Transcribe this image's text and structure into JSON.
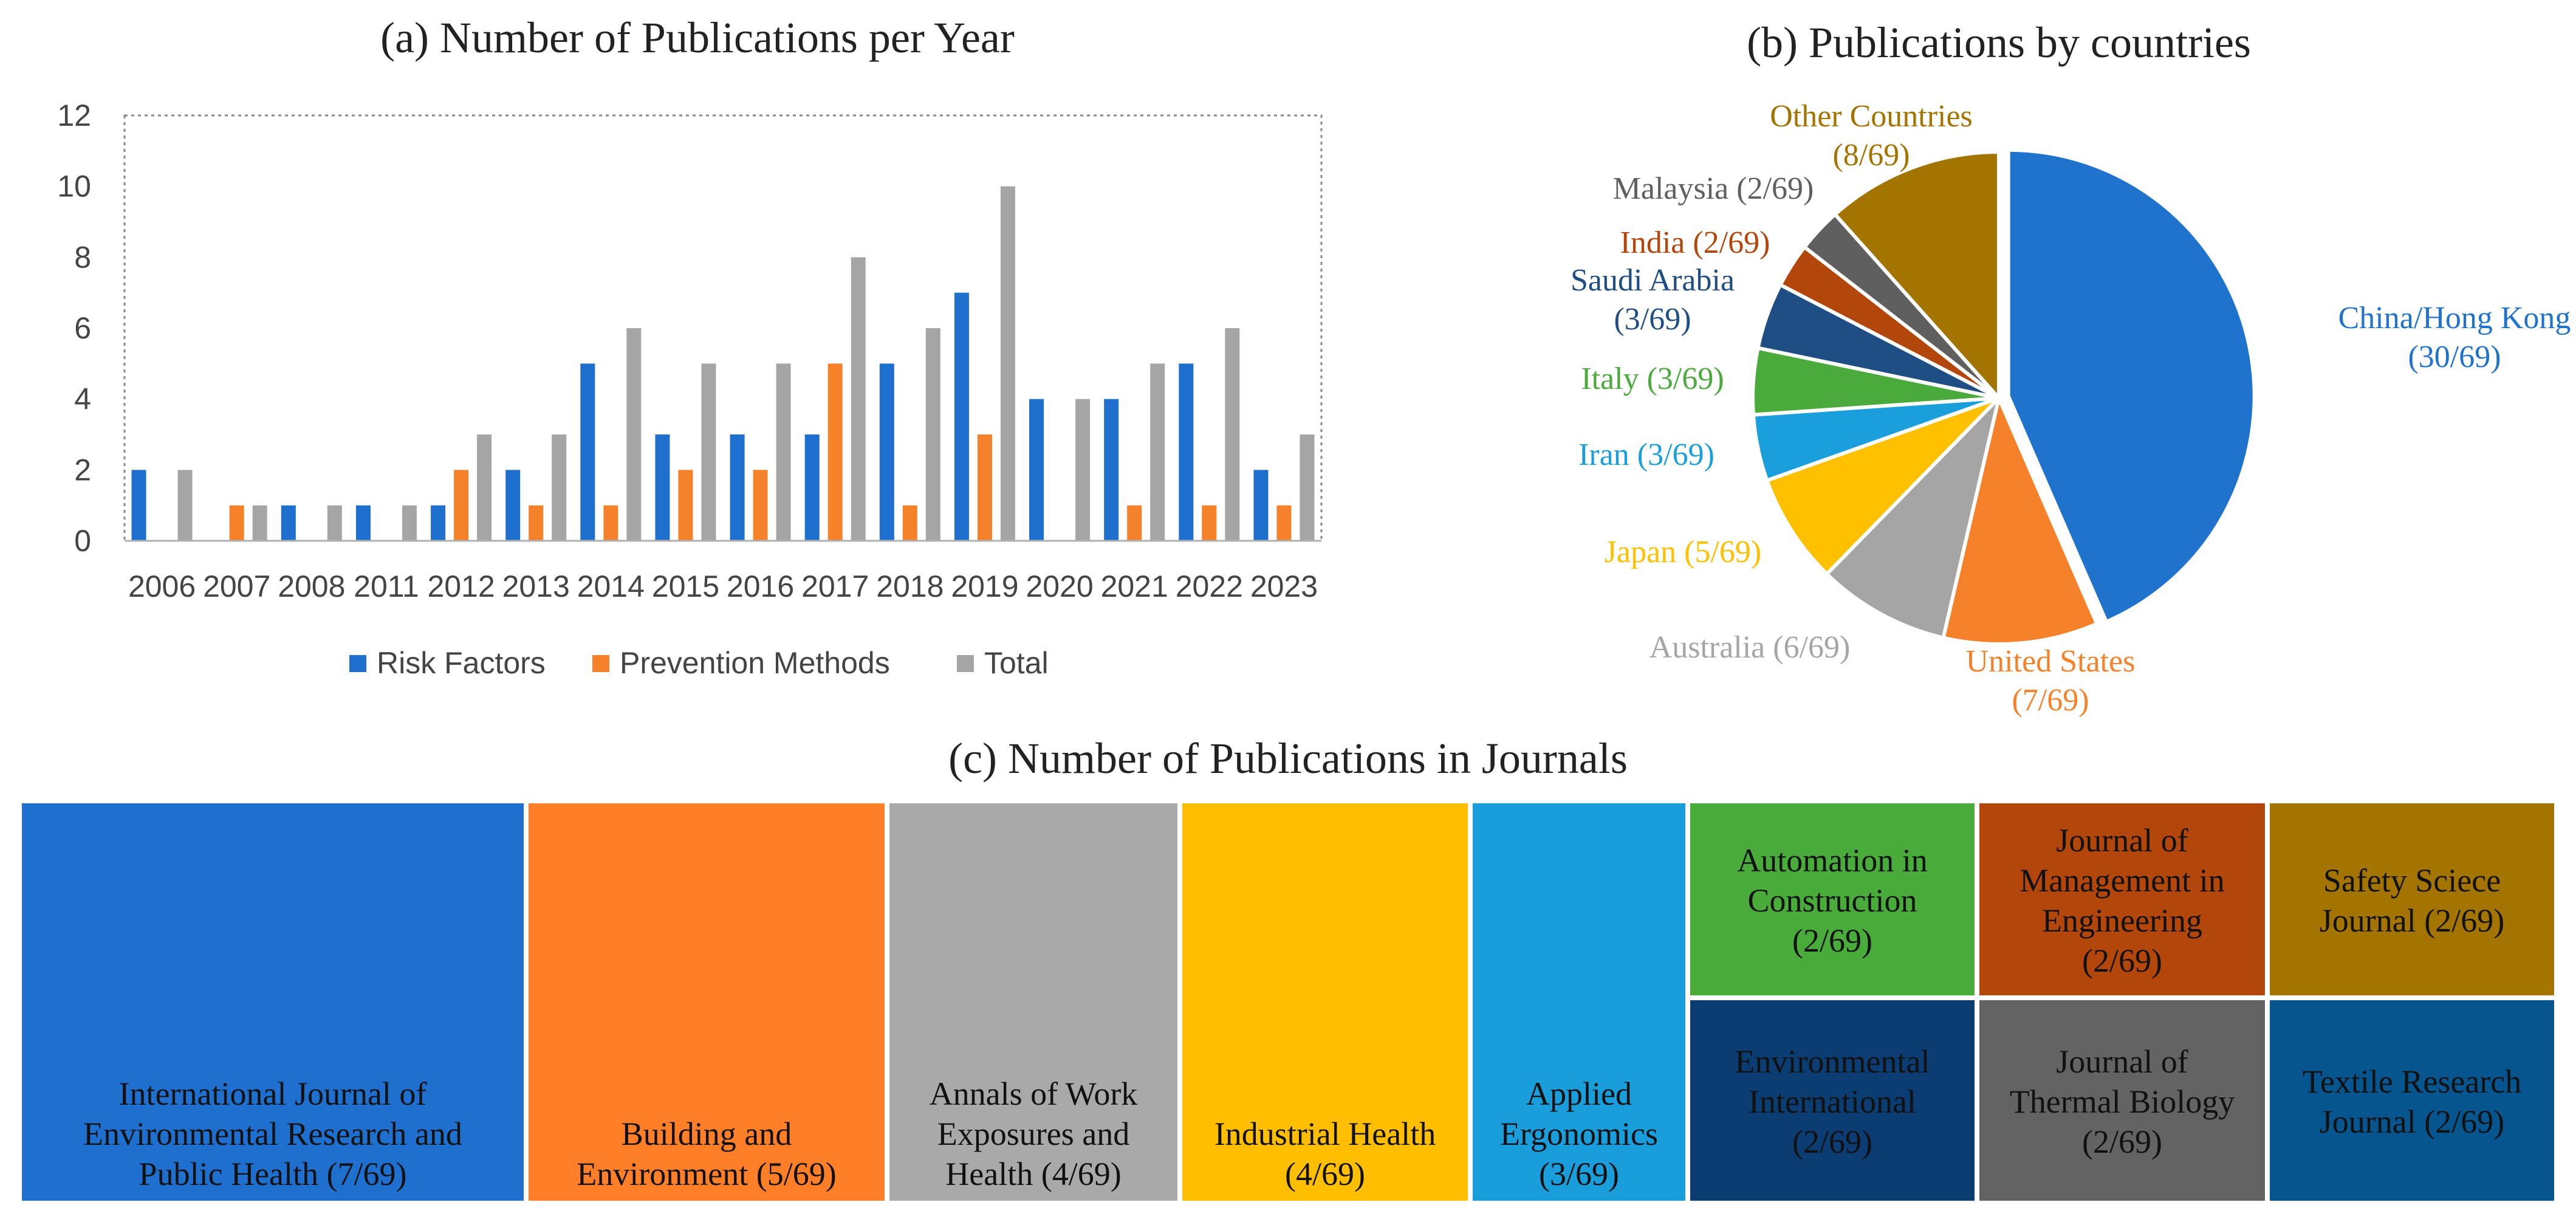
{
  "chart_data": [
    {
      "type": "bar",
      "title": "(a) Number of Publications per Year",
      "categories": [
        "2006",
        "2007",
        "2008",
        "2011",
        "2012",
        "2013",
        "2014",
        "2015",
        "2016",
        "2017",
        "2018",
        "2019",
        "2020",
        "2021",
        "2022",
        "2023"
      ],
      "series": [
        {
          "name": "Risk Factors",
          "color": "#1f6fcf",
          "values": [
            2,
            0,
            1,
            1,
            1,
            2,
            5,
            3,
            3,
            3,
            5,
            7,
            4,
            4,
            5,
            2
          ]
        },
        {
          "name": "Prevention Methods",
          "color": "#f5822a",
          "values": [
            0,
            1,
            0,
            0,
            2,
            1,
            1,
            2,
            2,
            5,
            1,
            3,
            0,
            1,
            1,
            1
          ]
        },
        {
          "name": "Total",
          "color": "#a5a5a5",
          "values": [
            2,
            1,
            1,
            1,
            3,
            3,
            6,
            5,
            5,
            8,
            6,
            10,
            4,
            5,
            6,
            3
          ]
        }
      ],
      "yticks": [
        "0",
        "2",
        "4",
        "6",
        "8",
        "10",
        "12"
      ],
      "ylim": [
        0,
        12
      ],
      "legend_position": "bottom"
    },
    {
      "type": "pie",
      "title": "(b) Publications by countries",
      "slices": [
        {
          "label": "China/Hong Kong (30/69)",
          "value": 30,
          "color": "#1f73cd"
        },
        {
          "label": "United States (7/69)",
          "value": 7,
          "color": "#f5822a"
        },
        {
          "label": "Australia (6/69)",
          "value": 6,
          "color": "#a5a5a5"
        },
        {
          "label": "Japan (5/69)",
          "value": 5,
          "color": "#ffc000"
        },
        {
          "label": "Iran (3/69)",
          "value": 3,
          "color": "#1a9edc"
        },
        {
          "label": "Italy (3/69)",
          "value": 3,
          "color": "#4aab3c"
        },
        {
          "label": "Saudi Arabia (3/69)",
          "value": 3,
          "color": "#1f4e84"
        },
        {
          "label": "India (2/69)",
          "value": 2,
          "color": "#b3470b"
        },
        {
          "label": "Malaysia (2/69)",
          "value": 2,
          "color": "#5f5f5f"
        },
        {
          "label": "Other Countries (8/69)",
          "value": 8,
          "color": "#a47400"
        }
      ]
    },
    {
      "type": "treemap",
      "title": "(c) Number of Publications in Journals",
      "items": [
        {
          "label": "International Journal of Environmental Research and Public Health (7/69)",
          "value": 7,
          "color": "#1f6fcf"
        },
        {
          "label": "Building and Environment (5/69)",
          "value": 5,
          "color": "#fe7f27"
        },
        {
          "label": "Annals of Work Exposures and Health (4/69)",
          "value": 4,
          "color": "#a9a9a9"
        },
        {
          "label": "Industrial Health (4/69)",
          "value": 4,
          "color": "#ffbf00"
        },
        {
          "label": "Applied Ergonomics (3/69)",
          "value": 3,
          "color": "#1a9ddb"
        },
        {
          "label": "Automation in Construction (2/69)",
          "value": 2,
          "color": "#49ac3a"
        },
        {
          "label": "Journal of Management in Engineering (2/69)",
          "value": 2,
          "color": "#b3470b"
        },
        {
          "label": "Safety Sciece Journal (2/69)",
          "value": 2,
          "color": "#a47400"
        },
        {
          "label": "Environmental International (2/69)",
          "value": 2,
          "color": "#0b3c72"
        },
        {
          "label": "Journal of Thermal Biology (2/69)",
          "value": 2,
          "color": "#636363"
        },
        {
          "label": "Textile Research Journal (2/69)",
          "value": 2,
          "color": "#06558f"
        }
      ]
    }
  ]
}
